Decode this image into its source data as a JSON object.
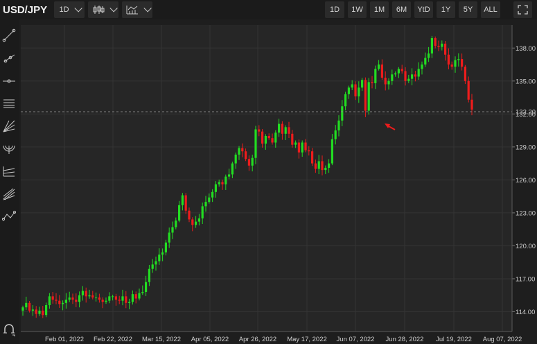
{
  "toolbar": {
    "pair": "USD/JPY",
    "interval": "1D",
    "chart_type_icon": "candlestick-icon",
    "indicators_icon": "indicators-icon",
    "ranges": [
      "1D",
      "1W",
      "1M",
      "6M",
      "YtD",
      "1Y",
      "5Y",
      "ALL"
    ],
    "fullscreen_icon": "fullscreen-icon"
  },
  "sidebar": {
    "tools": [
      "trend-line-icon",
      "ray-icon",
      "horizontal-line-icon",
      "parallel-channel-icon",
      "fib-fan-icon",
      "fib-arc-icon",
      "fib-retracement-icon",
      "pitchfork-icon",
      "zigzag-icon"
    ],
    "bottom_tool": "magnet-icon"
  },
  "chart_data": {
    "type": "candlestick",
    "title": "USD/JPY",
    "interval": "1D",
    "x_tick_labels": [
      "Feb 01, 2022",
      "Feb 22, 2022",
      "Mar 15, 2022",
      "Apr 05, 2022",
      "Apr 26, 2022",
      "May 17, 2022",
      "Jun 07, 2022",
      "Jun 28, 2022",
      "Jul 19, 2022",
      "Aug 07, 2022"
    ],
    "y_tick_labels": [
      "114.00",
      "117.00",
      "120.00",
      "123.00",
      "126.00",
      "129.00",
      "132.00",
      "135.00",
      "138.00"
    ],
    "ylim": [
      112.2,
      140.1
    ],
    "last_price": "132.20",
    "last_price_value": 132.2,
    "grid": true,
    "annotation": "red arrow pointing at Jun 16, 2022 low",
    "colors": {
      "up": "#22dd22",
      "down": "#ee1c1c",
      "background": "#262626",
      "grid": "#343434"
    },
    "closes": [
      114.4,
      114.8,
      114.1,
      114.2,
      113.8,
      114.1,
      113.7,
      114.6,
      115.4,
      115.1,
      115.0,
      114.7,
      114.8,
      115.1,
      115.3,
      115.1,
      114.9,
      115.5,
      115.9,
      115.4,
      115.5,
      115.3,
      115.3,
      115.1,
      114.9,
      115.0,
      115.4,
      115.4,
      115.1,
      115.0,
      115.4,
      114.8,
      114.9,
      115.6,
      115.2,
      115.7,
      115.8,
      116.7,
      117.9,
      118.3,
      118.6,
      119.2,
      119.4,
      120.3,
      121.2,
      121.7,
      122.3,
      123.7,
      124.6,
      123.2,
      122.4,
      121.9,
      122.2,
      122.5,
      123.6,
      124.0,
      124.4,
      124.9,
      125.6,
      125.8,
      125.6,
      126.3,
      126.5,
      127.5,
      128.3,
      128.9,
      128.6,
      127.9,
      127.3,
      128.0,
      130.6,
      130.4,
      129.3,
      130.0,
      129.8,
      129.4,
      130.3,
      131.1,
      130.2,
      130.8,
      130.2,
      129.2,
      129.4,
      128.5,
      129.4,
      128.7,
      128.6,
      127.5,
      127.0,
      127.7,
      126.9,
      127.1,
      127.5,
      129.7,
      130.5,
      131.4,
      132.7,
      133.8,
      134.4,
      134.7,
      133.6,
      134.4,
      135.1,
      132.3,
      134.9,
      134.8,
      136.1,
      136.5,
      135.3,
      134.7,
      135.0,
      135.6,
      135.7,
      136.1,
      135.9,
      135.0,
      135.2,
      135.6,
      135.4,
      136.1,
      136.5,
      137.1,
      137.5,
      138.9,
      138.2,
      138.1,
      138.4,
      137.4,
      136.5,
      136.3,
      136.9,
      137.0,
      136.3,
      135.0,
      133.3,
      132.4
    ]
  }
}
